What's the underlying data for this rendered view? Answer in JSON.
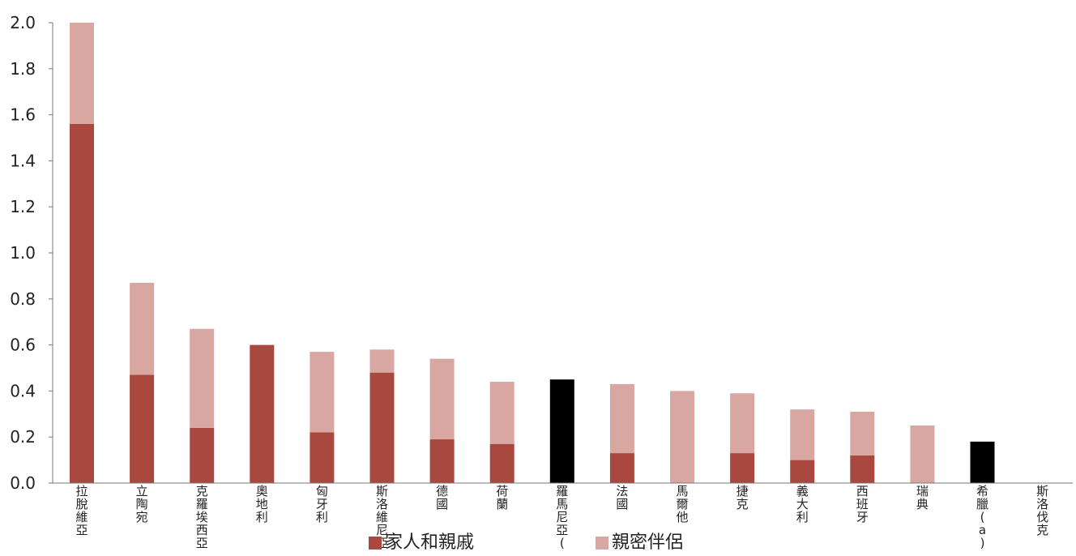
{
  "colors": {
    "family": "#a9483f",
    "partner": "#d9a7a1",
    "total_only": "#000000",
    "axis": "#777777",
    "text": "#222222"
  },
  "legend": {
    "family_label": "家人和親戚",
    "partner_label": "親密伴侶"
  },
  "chart_data": {
    "type": "bar",
    "stacked": true,
    "categories": [
      "拉脫維亞",
      "立陶宛",
      "克羅埃西亞",
      "奧地利",
      "匈牙利",
      "斯洛維尼亞",
      "德國",
      "荷蘭",
      "羅馬尼亞(a)",
      "法國",
      "馬爾他",
      "捷克",
      "義大利",
      "西班牙",
      "瑞典",
      "希臘(a)",
      "斯洛伐克"
    ],
    "series": [
      {
        "name": "家人和親戚",
        "values": [
          1.56,
          0.47,
          0.24,
          0.6,
          0.22,
          0.48,
          0.19,
          0.17,
          null,
          0.13,
          0.0,
          0.13,
          0.1,
          0.12,
          0.0,
          null,
          0.0
        ]
      },
      {
        "name": "親密伴侶",
        "values": [
          0.44,
          0.4,
          0.43,
          0.0,
          0.35,
          0.1,
          0.35,
          0.27,
          null,
          0.3,
          0.4,
          0.26,
          0.22,
          0.19,
          0.25,
          null,
          0.0
        ]
      }
    ],
    "totals_only": [
      null,
      null,
      null,
      null,
      null,
      null,
      null,
      null,
      0.45,
      null,
      null,
      null,
      null,
      null,
      null,
      0.18,
      null
    ],
    "ylim": [
      0,
      2.0
    ],
    "yticks": [
      "0.0",
      "0.2",
      "0.4",
      "0.6",
      "0.8",
      "1.0",
      "1.2",
      "1.4",
      "1.6",
      "1.8",
      "2.0"
    ],
    "grid": false,
    "legend_position": "bottom"
  }
}
